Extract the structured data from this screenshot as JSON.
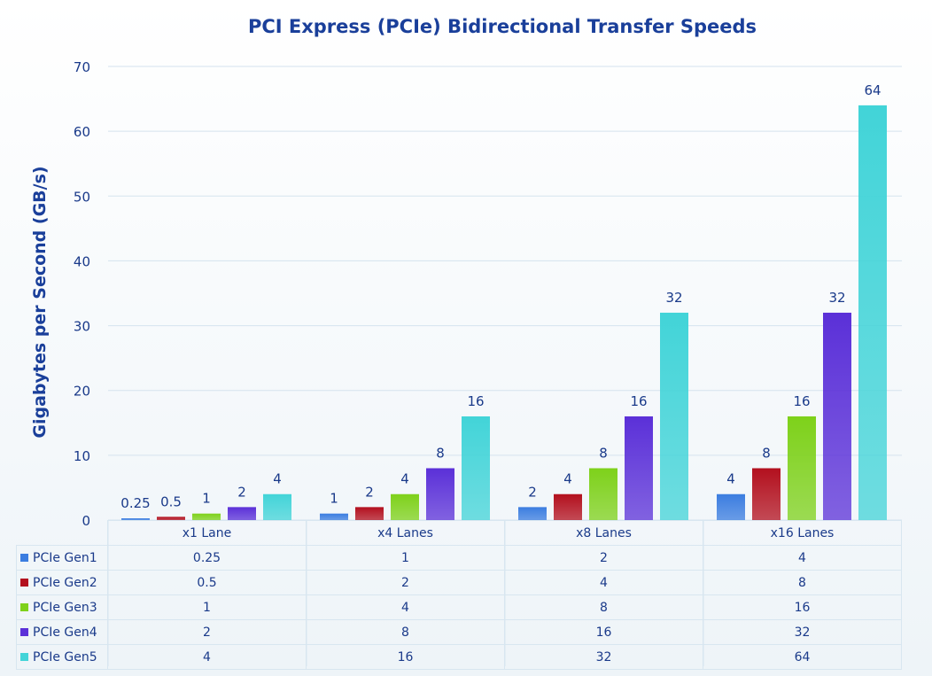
{
  "chart_data": {
    "type": "bar",
    "title": "PCI Express (PCIe) Bidirectional Transfer Speeds",
    "xlabel": "",
    "ylabel": "Gigabytes per Second (GB/s)",
    "ylim": [
      0,
      70
    ],
    "yticks": [
      "0",
      "10",
      "20",
      "30",
      "40",
      "50",
      "60",
      "70"
    ],
    "grid": true,
    "legend": "data-table-left",
    "categories": [
      "x1 Lane",
      "x4 Lanes",
      "x8 Lanes",
      "x16 Lanes"
    ],
    "series": [
      {
        "name": "PCIe Gen1",
        "values": [
          0.25,
          1,
          2,
          4
        ],
        "color": "#3b7de0"
      },
      {
        "name": "PCIe Gen2",
        "values": [
          0.5,
          2,
          4,
          8
        ],
        "color": "#b3101e"
      },
      {
        "name": "PCIe Gen3",
        "values": [
          1,
          4,
          8,
          16
        ],
        "color": "#7ed11a"
      },
      {
        "name": "PCIe Gen4",
        "values": [
          2,
          8,
          16,
          32
        ],
        "color": "#5b30d8"
      },
      {
        "name": "PCIe Gen5",
        "values": [
          4,
          16,
          32,
          64
        ],
        "color": "#42d4d8"
      }
    ]
  }
}
